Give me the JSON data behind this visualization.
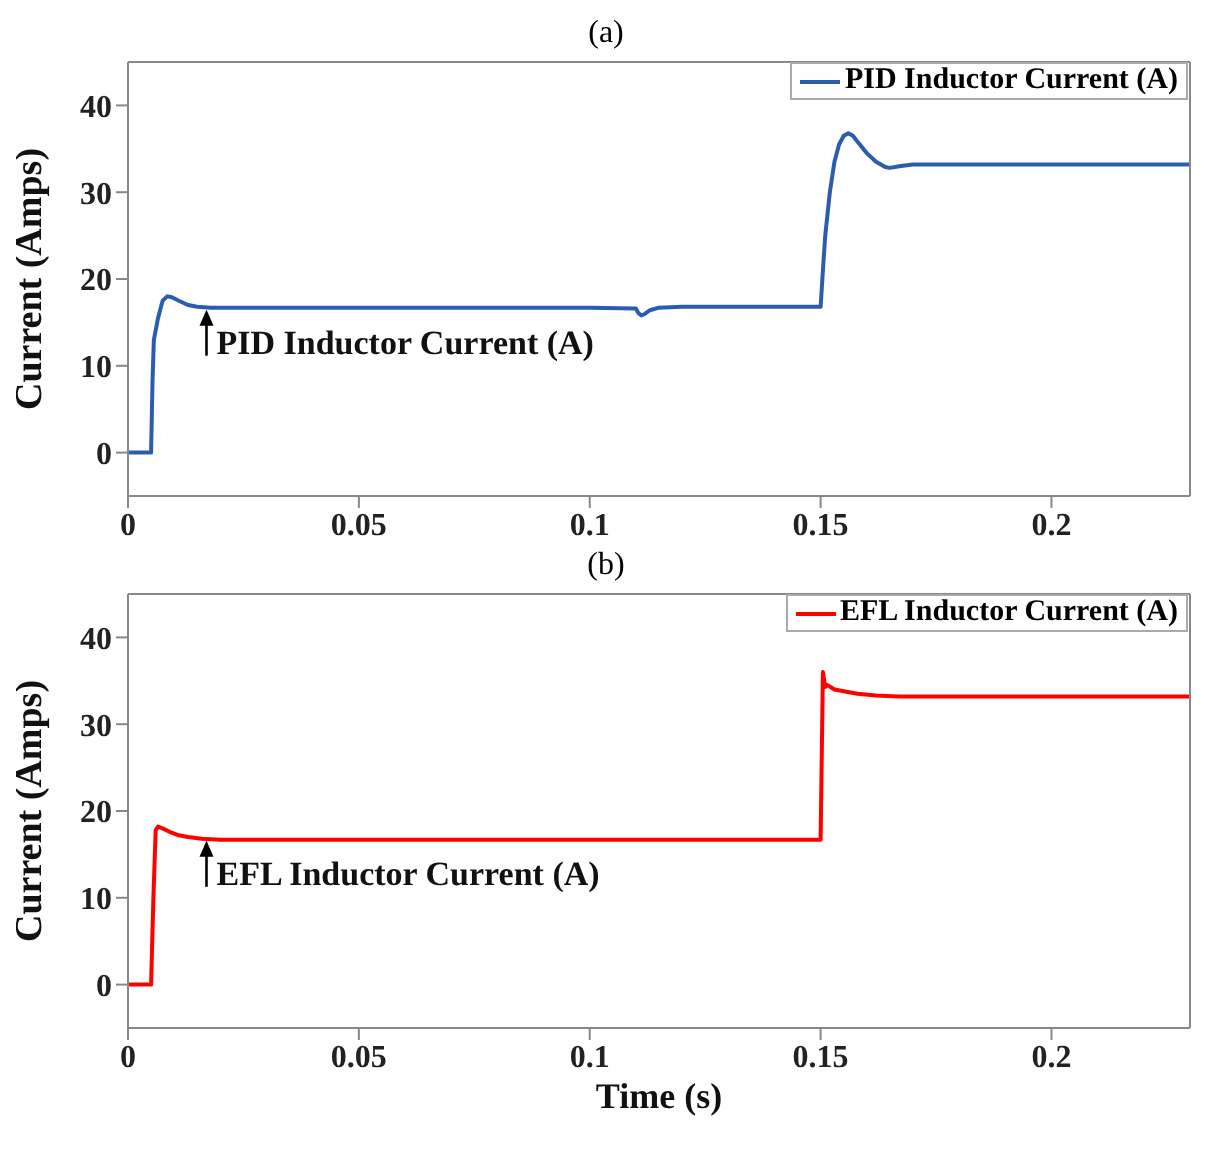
{
  "chart_data": [
    {
      "type": "line",
      "title": "(a)",
      "ylabel": "Current (Amps)",
      "xlim": [
        0,
        0.23
      ],
      "xticks": [
        0,
        0.05,
        0.1,
        0.15,
        0.2
      ],
      "ylim": [
        -5,
        45
      ],
      "yticks": [
        0,
        10,
        20,
        30,
        40
      ],
      "legend": "top right",
      "line_style": "solid",
      "annotations": [
        {
          "text": "PID Inductor Current (A)",
          "x": 0.017,
          "y": 16.7
        }
      ],
      "series": [
        {
          "name": "PID Inductor Current (A)",
          "color": "#2a5db0",
          "x": [
            0,
            0.005,
            0.0053,
            0.0056,
            0.0065,
            0.0075,
            0.0085,
            0.0095,
            0.011,
            0.013,
            0.015,
            0.018,
            0.025,
            0.05,
            0.1,
            0.11,
            0.1105,
            0.1112,
            0.112,
            0.113,
            0.115,
            0.12,
            0.15,
            0.1505,
            0.151,
            0.152,
            0.153,
            0.154,
            0.155,
            0.156,
            0.157,
            0.158,
            0.16,
            0.162,
            0.164,
            0.165,
            0.167,
            0.17,
            0.18,
            0.23
          ],
          "values": [
            0,
            0,
            8,
            13,
            15.5,
            17.5,
            18,
            17.9,
            17.5,
            17,
            16.8,
            16.7,
            16.7,
            16.7,
            16.7,
            16.6,
            16.1,
            15.8,
            16,
            16.4,
            16.7,
            16.8,
            16.8,
            21,
            25,
            30,
            33.5,
            35.5,
            36.5,
            36.8,
            36.5,
            35.8,
            34.5,
            33.5,
            32.9,
            32.8,
            33,
            33.2,
            33.2,
            33.2
          ]
        }
      ]
    },
    {
      "type": "line",
      "title": "(b)",
      "xlabel": "Time (s)",
      "ylabel": "Current (Amps)",
      "xlim": [
        0,
        0.23
      ],
      "xticks": [
        0,
        0.05,
        0.1,
        0.15,
        0.2
      ],
      "ylim": [
        -5,
        45
      ],
      "yticks": [
        0,
        10,
        20,
        30,
        40
      ],
      "legend": "top right",
      "line_style": "solid",
      "annotations": [
        {
          "text": "EFL Inductor Current (A)",
          "x": 0.017,
          "y": 16.8
        }
      ],
      "series": [
        {
          "name": "EFL Inductor Current (A)",
          "color": "#ff0000",
          "x": [
            0,
            0.005,
            0.0055,
            0.006,
            0.0065,
            0.0075,
            0.009,
            0.011,
            0.013,
            0.016,
            0.02,
            0.025,
            0.05,
            0.1,
            0.15,
            0.1505,
            0.151,
            0.1515,
            0.153,
            0.155,
            0.158,
            0.162,
            0.167,
            0.18,
            0.23
          ],
          "values": [
            0,
            0,
            10,
            17.8,
            18.2,
            18,
            17.6,
            17.2,
            17,
            16.8,
            16.7,
            16.7,
            16.7,
            16.7,
            16.7,
            36,
            34.3,
            34.5,
            34,
            33.8,
            33.5,
            33.3,
            33.2,
            33.2,
            33.2
          ]
        }
      ]
    }
  ]
}
